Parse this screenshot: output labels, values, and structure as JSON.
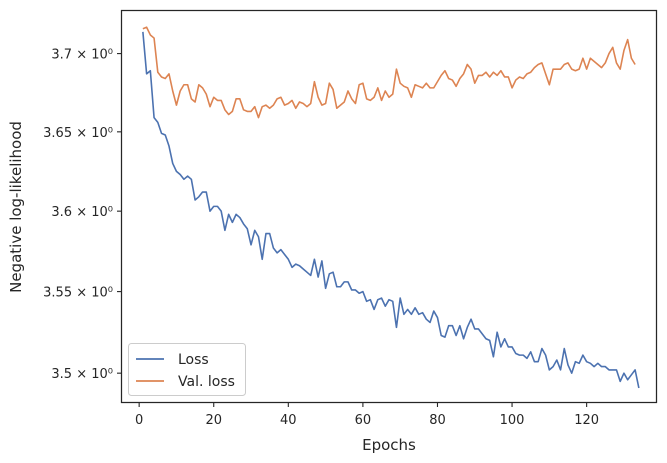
{
  "chart_data": {
    "type": "line",
    "xlabel": "Epochs",
    "ylabel": "Negative log-likelihood",
    "yscale": "log",
    "xlim": [
      -4.6,
      138.6
    ],
    "ylim": [
      3.4825,
      3.7275
    ],
    "x_ticks": [
      0,
      20,
      40,
      60,
      80,
      100,
      120
    ],
    "x_tick_labels": [
      "0",
      "20",
      "40",
      "60",
      "80",
      "100",
      "120"
    ],
    "y_ticks": [
      3.5,
      3.55,
      3.6,
      3.65,
      3.7
    ],
    "y_tick_labels": [
      "3.5 × 10⁰",
      "3.55 × 10⁰",
      "3.6 × 10⁰",
      "3.65 × 10⁰",
      "3.7 × 10⁰"
    ],
    "grid": false,
    "legend_position": "lower-left",
    "x_start": 1,
    "series": [
      {
        "name": "Loss",
        "color": "#4c72b0",
        "values": [
          3.714,
          3.687,
          3.689,
          3.659,
          3.656,
          3.649,
          3.648,
          3.641,
          3.63,
          3.625,
          3.623,
          3.62,
          3.622,
          3.62,
          3.607,
          3.609,
          3.612,
          3.612,
          3.6,
          3.603,
          3.603,
          3.6,
          3.588,
          3.598,
          3.593,
          3.598,
          3.596,
          3.592,
          3.589,
          3.579,
          3.588,
          3.584,
          3.57,
          3.586,
          3.586,
          3.577,
          3.574,
          3.576,
          3.573,
          3.57,
          3.565,
          3.567,
          3.566,
          3.564,
          3.562,
          3.56,
          3.57,
          3.559,
          3.569,
          3.552,
          3.561,
          3.562,
          3.553,
          3.553,
          3.556,
          3.556,
          3.551,
          3.551,
          3.549,
          3.55,
          3.544,
          3.545,
          3.539,
          3.545,
          3.546,
          3.541,
          3.545,
          3.544,
          3.528,
          3.546,
          3.536,
          3.539,
          3.536,
          3.54,
          3.536,
          3.537,
          3.533,
          3.531,
          3.538,
          3.534,
          3.523,
          3.522,
          3.529,
          3.529,
          3.523,
          3.529,
          3.521,
          3.528,
          3.533,
          3.527,
          3.527,
          3.524,
          3.521,
          3.52,
          3.51,
          3.525,
          3.516,
          3.521,
          3.516,
          3.516,
          3.512,
          3.511,
          3.511,
          3.509,
          3.513,
          3.507,
          3.507,
          3.515,
          3.511,
          3.502,
          3.504,
          3.508,
          3.502,
          3.515,
          3.505,
          3.5,
          3.507,
          3.506,
          3.511,
          3.507,
          3.506,
          3.504,
          3.506,
          3.504,
          3.504,
          3.502,
          3.502,
          3.502,
          3.495,
          3.5,
          3.496,
          3.499,
          3.502,
          3.491
        ]
      },
      {
        "name": "Val. loss",
        "color": "#dd8452",
        "values": [
          3.716,
          3.717,
          3.712,
          3.71,
          3.688,
          3.685,
          3.684,
          3.687,
          3.676,
          3.667,
          3.676,
          3.68,
          3.68,
          3.671,
          3.669,
          3.68,
          3.678,
          3.674,
          3.666,
          3.672,
          3.67,
          3.67,
          3.664,
          3.661,
          3.663,
          3.671,
          3.671,
          3.664,
          3.663,
          3.663,
          3.666,
          3.659,
          3.666,
          3.667,
          3.665,
          3.667,
          3.671,
          3.672,
          3.667,
          3.668,
          3.67,
          3.665,
          3.669,
          3.668,
          3.666,
          3.668,
          3.682,
          3.672,
          3.667,
          3.668,
          3.681,
          3.677,
          3.665,
          3.667,
          3.669,
          3.676,
          3.671,
          3.668,
          3.68,
          3.681,
          3.671,
          3.67,
          3.672,
          3.678,
          3.67,
          3.676,
          3.672,
          3.674,
          3.69,
          3.681,
          3.679,
          3.678,
          3.672,
          3.68,
          3.679,
          3.678,
          3.681,
          3.678,
          3.678,
          3.682,
          3.686,
          3.689,
          3.684,
          3.683,
          3.679,
          3.684,
          3.687,
          3.693,
          3.69,
          3.681,
          3.686,
          3.686,
          3.688,
          3.685,
          3.688,
          3.686,
          3.689,
          3.685,
          3.685,
          3.678,
          3.683,
          3.685,
          3.684,
          3.687,
          3.688,
          3.691,
          3.693,
          3.694,
          3.687,
          3.68,
          3.69,
          3.69,
          3.69,
          3.693,
          3.694,
          3.69,
          3.689,
          3.69,
          3.697,
          3.69,
          3.697,
          3.695,
          3.693,
          3.691,
          3.694,
          3.7,
          3.704,
          3.694,
          3.69,
          3.702,
          3.709,
          3.697,
          3.693
        ]
      }
    ]
  }
}
